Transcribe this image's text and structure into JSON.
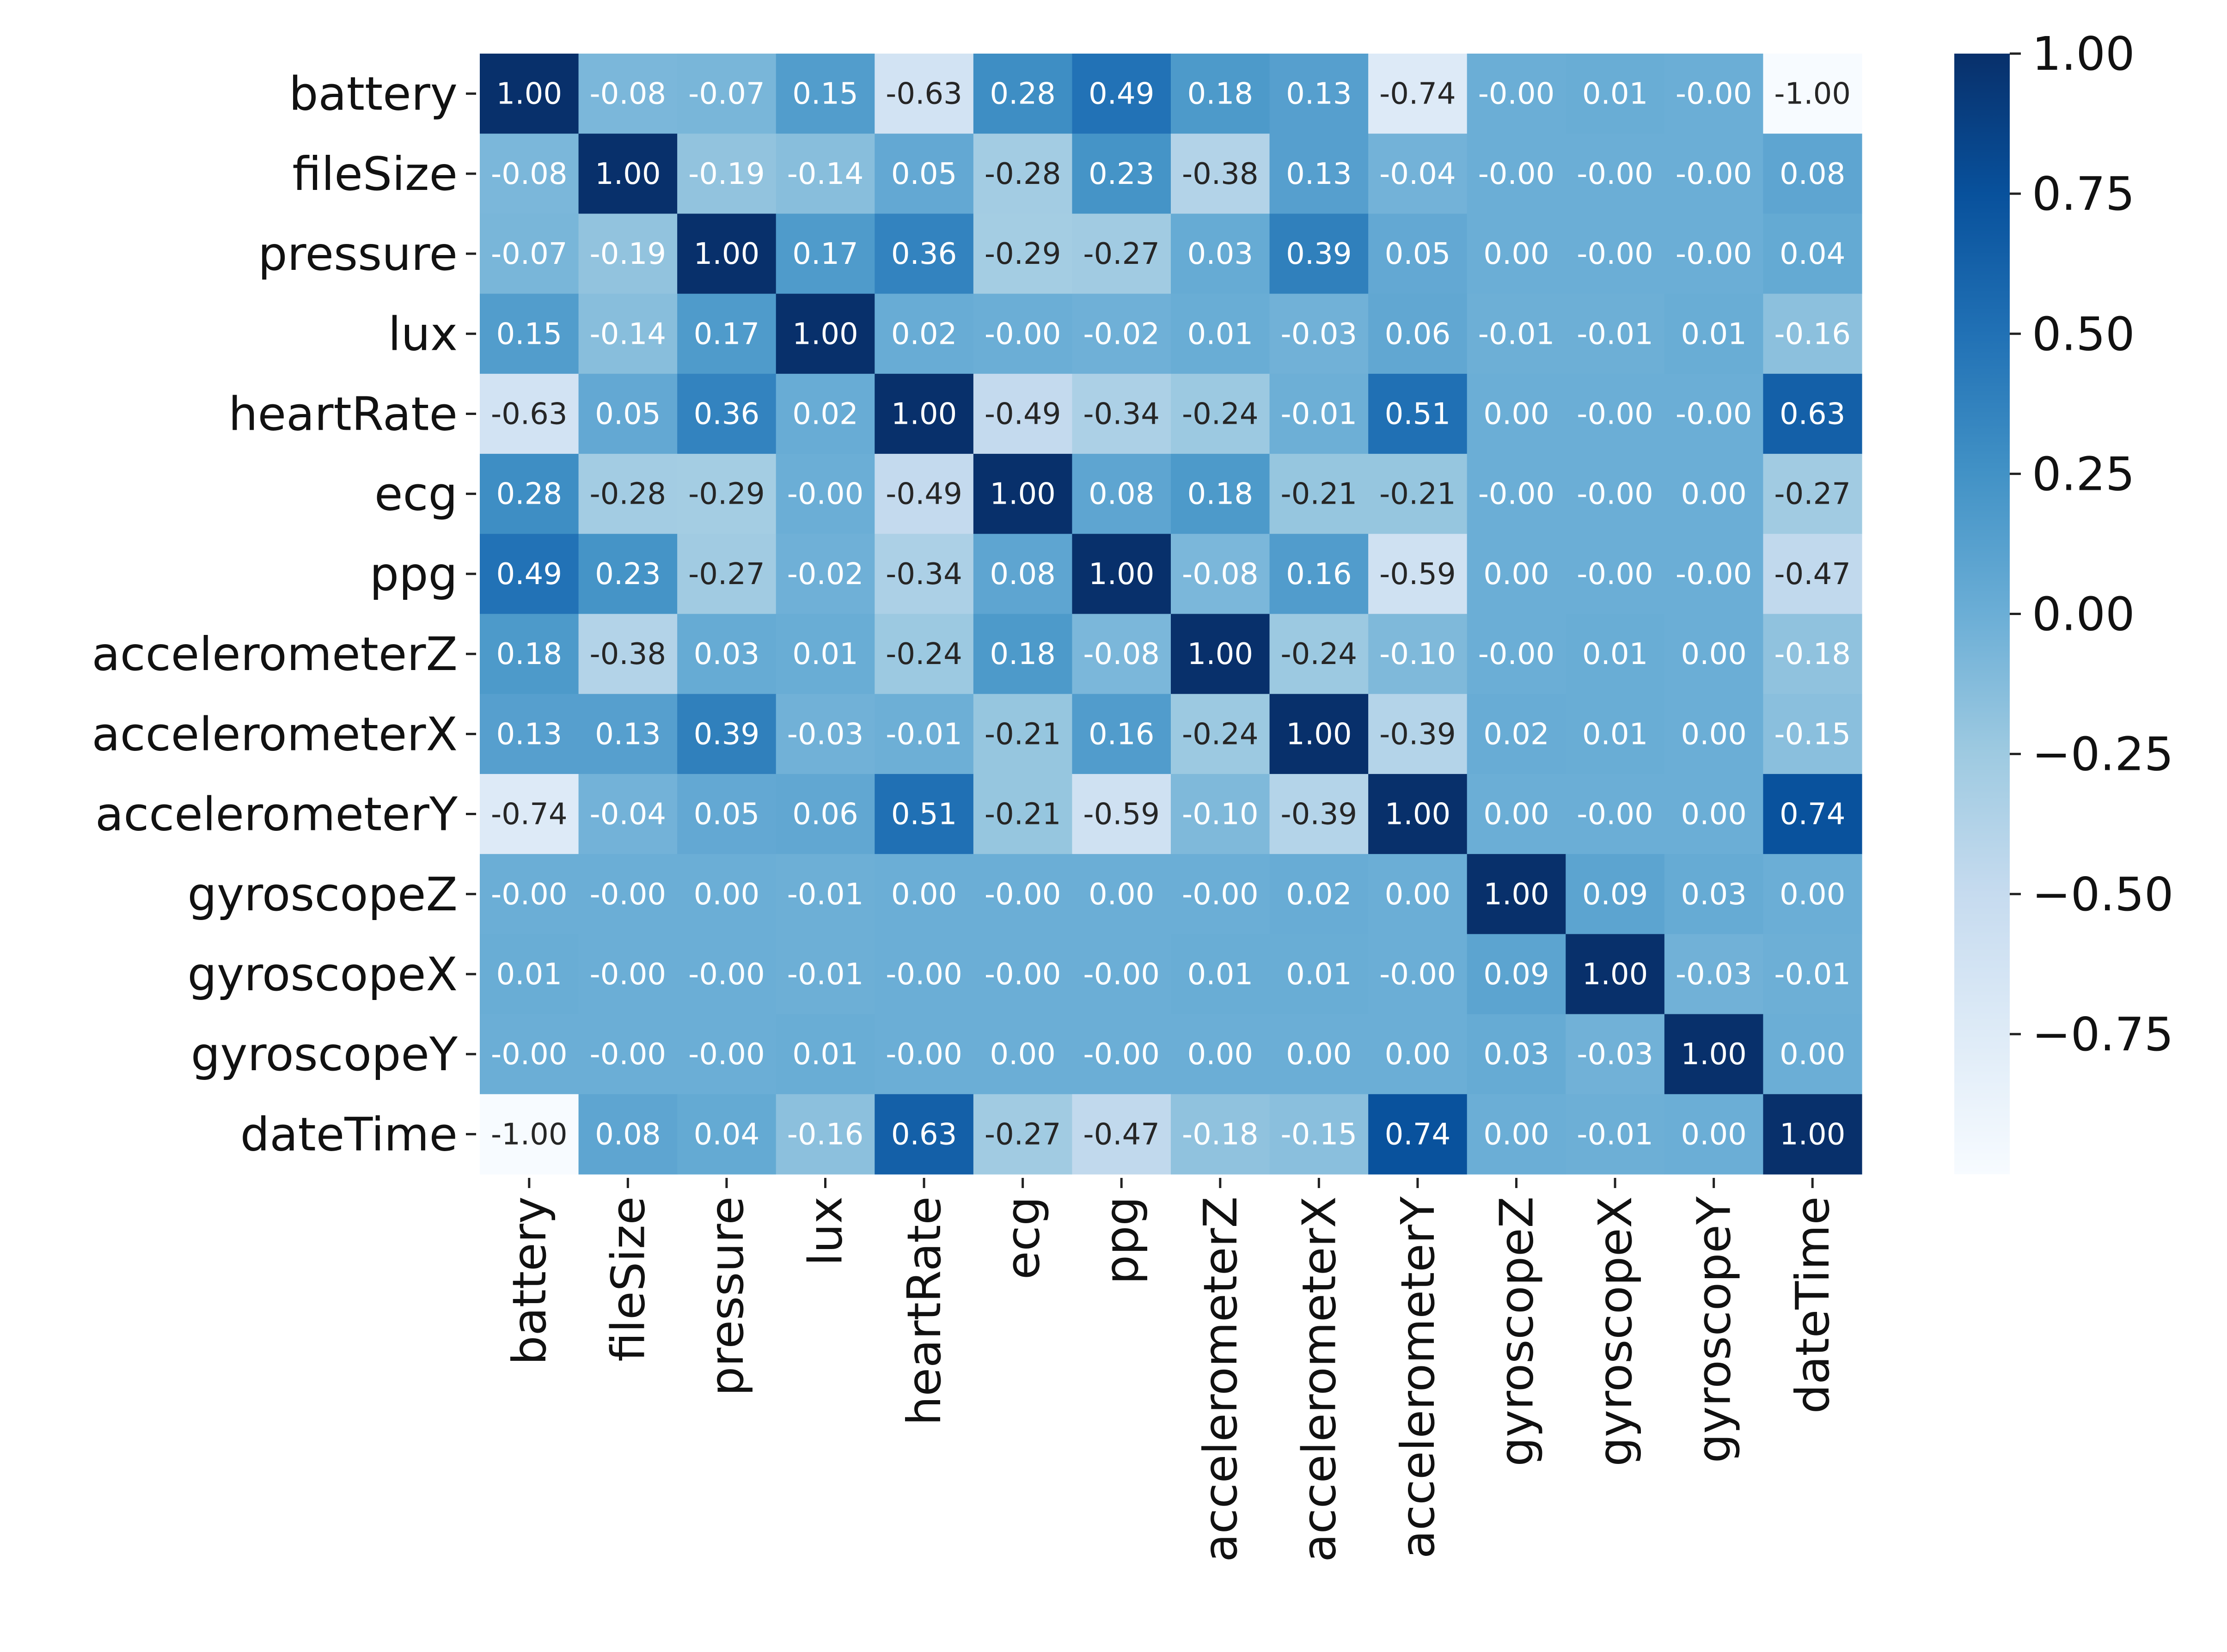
{
  "chart_data": {
    "type": "heatmap",
    "title": "",
    "xlabel": "",
    "ylabel": "",
    "colormap": "Blues",
    "colormap_stops": [
      "#f7fbff",
      "#deebf7",
      "#c6dbef",
      "#9ecae1",
      "#6baed6",
      "#4292c6",
      "#2171b5",
      "#08519c",
      "#08306b"
    ],
    "vmin": -1.0,
    "vmax": 1.0,
    "value_format": "2 decimals",
    "rows": [
      "battery",
      "fileSize",
      "pressure",
      "lux",
      "heartRate",
      "ecg",
      "ppg",
      "accelerometerZ",
      "accelerometerX",
      "accelerometerY",
      "gyroscopeZ",
      "gyroscopeX",
      "gyroscopeY",
      "dateTime"
    ],
    "columns": [
      "battery",
      "fileSize",
      "pressure",
      "lux",
      "heartRate",
      "ecg",
      "ppg",
      "accelerometerZ",
      "accelerometerX",
      "accelerometerY",
      "gyroscopeZ",
      "gyroscopeX",
      "gyroscopeY",
      "dateTime"
    ],
    "values": [
      [
        "1.00",
        "-0.08",
        "-0.07",
        "0.15",
        "-0.63",
        "0.28",
        "0.49",
        "0.18",
        "0.13",
        "-0.74",
        "-0.00",
        "0.01",
        "-0.00",
        "-1.00"
      ],
      [
        "-0.08",
        "1.00",
        "-0.19",
        "-0.14",
        "0.05",
        "-0.28",
        "0.23",
        "-0.38",
        "0.13",
        "-0.04",
        "-0.00",
        "-0.00",
        "-0.00",
        "0.08"
      ],
      [
        "-0.07",
        "-0.19",
        "1.00",
        "0.17",
        "0.36",
        "-0.29",
        "-0.27",
        "0.03",
        "0.39",
        "0.05",
        "0.00",
        "-0.00",
        "-0.00",
        "0.04"
      ],
      [
        "0.15",
        "-0.14",
        "0.17",
        "1.00",
        "0.02",
        "-0.00",
        "-0.02",
        "0.01",
        "-0.03",
        "0.06",
        "-0.01",
        "-0.01",
        "0.01",
        "-0.16"
      ],
      [
        "-0.63",
        "0.05",
        "0.36",
        "0.02",
        "1.00",
        "-0.49",
        "-0.34",
        "-0.24",
        "-0.01",
        "0.51",
        "0.00",
        "-0.00",
        "-0.00",
        "0.63"
      ],
      [
        "0.28",
        "-0.28",
        "-0.29",
        "-0.00",
        "-0.49",
        "1.00",
        "0.08",
        "0.18",
        "-0.21",
        "-0.21",
        "-0.00",
        "-0.00",
        "0.00",
        "-0.27"
      ],
      [
        "0.49",
        "0.23",
        "-0.27",
        "-0.02",
        "-0.34",
        "0.08",
        "1.00",
        "-0.08",
        "0.16",
        "-0.59",
        "0.00",
        "-0.00",
        "-0.00",
        "-0.47"
      ],
      [
        "0.18",
        "-0.38",
        "0.03",
        "0.01",
        "-0.24",
        "0.18",
        "-0.08",
        "1.00",
        "-0.24",
        "-0.10",
        "-0.00",
        "0.01",
        "0.00",
        "-0.18"
      ],
      [
        "0.13",
        "0.13",
        "0.39",
        "-0.03",
        "-0.01",
        "-0.21",
        "0.16",
        "-0.24",
        "1.00",
        "-0.39",
        "0.02",
        "0.01",
        "0.00",
        "-0.15"
      ],
      [
        "-0.74",
        "-0.04",
        "0.05",
        "0.06",
        "0.51",
        "-0.21",
        "-0.59",
        "-0.10",
        "-0.39",
        "1.00",
        "0.00",
        "-0.00",
        "0.00",
        "0.74"
      ],
      [
        "-0.00",
        "-0.00",
        "0.00",
        "-0.01",
        "0.00",
        "-0.00",
        "0.00",
        "-0.00",
        "0.02",
        "0.00",
        "1.00",
        "0.09",
        "0.03",
        "0.00"
      ],
      [
        "0.01",
        "-0.00",
        "-0.00",
        "-0.01",
        "-0.00",
        "-0.00",
        "-0.00",
        "0.01",
        "0.01",
        "-0.00",
        "0.09",
        "1.00",
        "-0.03",
        "-0.01"
      ],
      [
        "-0.00",
        "-0.00",
        "-0.00",
        "0.01",
        "-0.00",
        "0.00",
        "-0.00",
        "0.00",
        "0.00",
        "0.00",
        "0.03",
        "-0.03",
        "1.00",
        "0.00"
      ],
      [
        "-1.00",
        "0.08",
        "0.04",
        "-0.16",
        "0.63",
        "-0.27",
        "-0.47",
        "-0.18",
        "-0.15",
        "0.74",
        "0.00",
        "-0.01",
        "0.00",
        "1.00"
      ]
    ],
    "colorbar": {
      "ticks": [
        1.0,
        0.75,
        0.5,
        0.25,
        0.0,
        -0.25,
        -0.5,
        -0.75
      ],
      "tick_labels": [
        "1.00",
        "0.75",
        "0.50",
        "0.25",
        "0.00",
        "−0.25",
        "−0.50",
        "−0.75"
      ],
      "range": [
        -1.0,
        1.0
      ]
    },
    "grid": false,
    "legend": "colorbar-right"
  }
}
